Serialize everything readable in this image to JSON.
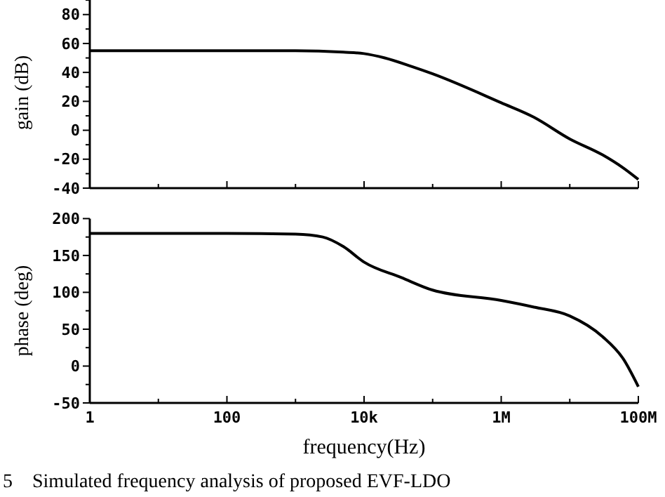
{
  "chart_data": [
    {
      "type": "line",
      "ylabel": "gain (dB)",
      "log": "x",
      "tick_labels": "y",
      "xlim": [
        1,
        100000000
      ],
      "xticks": [
        {
          "value": 1,
          "label": null
        },
        {
          "value": 10,
          "label": null
        },
        {
          "value": 100,
          "label": null
        },
        {
          "value": 1000,
          "label": null
        },
        {
          "value": 10000,
          "label": null
        },
        {
          "value": 100000,
          "label": null
        },
        {
          "value": 1000000,
          "label": null
        },
        {
          "value": 10000000,
          "label": null
        },
        {
          "value": 100000000,
          "label": null
        }
      ],
      "ylim": [
        -40,
        92
      ],
      "yticks": [
        -40,
        {
          "value": -30,
          "label": null
        },
        -20,
        {
          "value": -10,
          "label": null
        },
        0,
        {
          "value": 10,
          "label": null
        },
        20,
        {
          "value": 30,
          "label": null
        },
        40,
        {
          "value": 50,
          "label": null
        },
        60,
        {
          "value": 70,
          "label": null
        },
        80,
        {
          "value": 90,
          "label": null
        }
      ],
      "grid": false,
      "series": [
        {
          "color": "#000000",
          "x": [
            1,
            10,
            100,
            1000,
            5000,
            10000,
            20000,
            50000,
            100000,
            1000000,
            3000000,
            10000000,
            30000000,
            60000000,
            100000000
          ],
          "values": [
            55,
            55,
            55,
            55,
            54,
            53,
            50,
            44,
            39,
            19,
            9,
            -6,
            -17,
            -26,
            -34
          ]
        }
      ]
    },
    {
      "type": "line",
      "ylabel": "phase (deg)",
      "xlabel": "frequency(Hz)",
      "log": "x",
      "xlim": [
        1,
        100000000
      ],
      "xticks": [
        1,
        {
          "value": 10,
          "label": null
        },
        100,
        {
          "value": 1000,
          "label": null
        },
        {
          "value": 10000,
          "label": "10k"
        },
        {
          "value": 100000,
          "label": null
        },
        {
          "value": 1000000,
          "label": "1M"
        },
        {
          "value": 10000000,
          "label": null
        },
        {
          "value": 100000000,
          "label": "100M"
        }
      ],
      "ylim": [
        -50,
        200
      ],
      "yticks": [
        -50,
        {
          "value": -25,
          "label": null
        },
        0,
        {
          "value": 25,
          "label": null
        },
        50,
        {
          "value": 75,
          "label": null
        },
        100,
        {
          "value": 125,
          "label": null
        },
        150,
        {
          "value": 175,
          "label": null
        },
        200
      ],
      "grid": false,
      "annotations": [
        "5    Simulated frequency analysis of proposed EVF-LDO"
      ],
      "series": [
        {
          "color": "#000000",
          "x": [
            1,
            10,
            100,
            1000,
            2500,
            5000,
            10000,
            35000,
            100000,
            1000000,
            3000000,
            10000000,
            30000000,
            60000000,
            100000000
          ],
          "values": [
            180,
            180,
            180,
            179,
            175,
            162,
            141,
            120,
            103,
            89,
            80,
            68,
            40,
            10,
            -28
          ]
        }
      ]
    }
  ]
}
